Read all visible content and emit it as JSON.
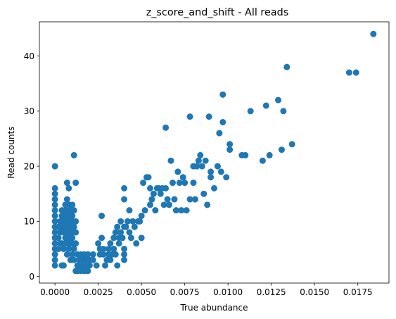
{
  "chart_data": {
    "type": "scatter",
    "title": "z_score_and_shift - All reads",
    "xlabel": "True abundance",
    "ylabel": "Read counts",
    "xlim": [
      -0.0009,
      0.0193
    ],
    "ylim": [
      -1.2,
      46.2
    ],
    "xticks": [
      0.0,
      0.0025,
      0.005,
      0.0075,
      0.01,
      0.0125,
      0.015,
      0.0175
    ],
    "xtick_labels": [
      "0.0000",
      "0.0025",
      "0.0050",
      "0.0075",
      "0.0100",
      "0.0125",
      "0.0150",
      "0.0175"
    ],
    "yticks": [
      0,
      10,
      20,
      30,
      40
    ],
    "ytick_labels": [
      "0",
      "10",
      "20",
      "30",
      "40"
    ],
    "grid": false,
    "marker_color": "#1f77b4",
    "series": [
      {
        "points": [
          [
            0.0,
            20
          ],
          [
            0.0,
            16
          ],
          [
            0.0,
            15
          ],
          [
            0.0,
            14
          ],
          [
            0.0,
            13
          ],
          [
            0.0,
            12
          ],
          [
            0.0,
            11
          ],
          [
            0.0,
            10
          ],
          [
            0.0,
            9
          ],
          [
            0.0,
            8
          ],
          [
            0.0,
            7
          ],
          [
            0.0,
            6
          ],
          [
            0.0,
            5
          ],
          [
            0.0,
            4
          ],
          [
            0.0,
            3
          ],
          [
            0.0,
            2
          ],
          [
            0.0002,
            9
          ],
          [
            0.0002,
            7
          ],
          [
            0.0002,
            5
          ],
          [
            0.0003,
            10
          ],
          [
            0.0003,
            8
          ],
          [
            0.0003,
            6
          ],
          [
            0.0004,
            12
          ],
          [
            0.0004,
            11
          ],
          [
            0.0004,
            9
          ],
          [
            0.0004,
            6
          ],
          [
            0.0004,
            2
          ],
          [
            0.0005,
            11
          ],
          [
            0.0005,
            10
          ],
          [
            0.0005,
            8
          ],
          [
            0.0005,
            5
          ],
          [
            0.0005,
            2
          ],
          [
            0.0006,
            13
          ],
          [
            0.0006,
            12
          ],
          [
            0.0006,
            10
          ],
          [
            0.0006,
            9
          ],
          [
            0.0006,
            7
          ],
          [
            0.0006,
            6
          ],
          [
            0.0007,
            17
          ],
          [
            0.0007,
            14
          ],
          [
            0.0007,
            11
          ],
          [
            0.0007,
            9
          ],
          [
            0.0007,
            8
          ],
          [
            0.0007,
            6
          ],
          [
            0.0007,
            4
          ],
          [
            0.0008,
            16
          ],
          [
            0.0008,
            13
          ],
          [
            0.0008,
            12
          ],
          [
            0.0008,
            10
          ],
          [
            0.0008,
            7
          ],
          [
            0.0008,
            5
          ],
          [
            0.0009,
            12
          ],
          [
            0.0009,
            11
          ],
          [
            0.0009,
            9
          ],
          [
            0.0009,
            8
          ],
          [
            0.0009,
            6
          ],
          [
            0.0009,
            3
          ],
          [
            0.001,
            13
          ],
          [
            0.001,
            11
          ],
          [
            0.001,
            10
          ],
          [
            0.001,
            8
          ],
          [
            0.001,
            7
          ],
          [
            0.001,
            6
          ],
          [
            0.001,
            4
          ],
          [
            0.0011,
            22
          ],
          [
            0.0011,
            12
          ],
          [
            0.0011,
            9
          ],
          [
            0.0011,
            5
          ],
          [
            0.0011,
            3
          ],
          [
            0.0012,
            17
          ],
          [
            0.0012,
            10
          ],
          [
            0.0012,
            8
          ],
          [
            0.0012,
            6
          ],
          [
            0.0012,
            1
          ],
          [
            0.0013,
            4
          ],
          [
            0.0013,
            2
          ],
          [
            0.0013,
            1
          ],
          [
            0.0014,
            3
          ],
          [
            0.0014,
            2
          ],
          [
            0.0015,
            4
          ],
          [
            0.0015,
            1
          ],
          [
            0.0016,
            3
          ],
          [
            0.0016,
            2
          ],
          [
            0.0017,
            4
          ],
          [
            0.0017,
            1
          ],
          [
            0.0018,
            3
          ],
          [
            0.0018,
            2
          ],
          [
            0.0019,
            4
          ],
          [
            0.0019,
            1
          ],
          [
            0.002,
            3
          ],
          [
            0.002,
            2
          ],
          [
            0.0022,
            4
          ],
          [
            0.0022,
            3
          ],
          [
            0.0024,
            2
          ],
          [
            0.0025,
            6
          ],
          [
            0.0026,
            5
          ],
          [
            0.0026,
            4
          ],
          [
            0.0027,
            7
          ],
          [
            0.0027,
            11
          ],
          [
            0.0028,
            5
          ],
          [
            0.0028,
            4
          ],
          [
            0.0029,
            2
          ],
          [
            0.003,
            3
          ],
          [
            0.0031,
            5
          ],
          [
            0.0031,
            4
          ],
          [
            0.0032,
            6
          ],
          [
            0.0032,
            3
          ],
          [
            0.0033,
            4
          ],
          [
            0.0034,
            7
          ],
          [
            0.0034,
            5
          ],
          [
            0.0035,
            8
          ],
          [
            0.0035,
            4
          ],
          [
            0.0036,
            9
          ],
          [
            0.0036,
            2
          ],
          [
            0.0037,
            7
          ],
          [
            0.0037,
            6
          ],
          [
            0.0038,
            10
          ],
          [
            0.0038,
            8
          ],
          [
            0.0039,
            7
          ],
          [
            0.004,
            16
          ],
          [
            0.004,
            14
          ],
          [
            0.004,
            9
          ],
          [
            0.004,
            5
          ],
          [
            0.004,
            4
          ],
          [
            0.004,
            3
          ],
          [
            0.0041,
            9
          ],
          [
            0.0042,
            10
          ],
          [
            0.0043,
            12
          ],
          [
            0.0043,
            8
          ],
          [
            0.0044,
            7
          ],
          [
            0.0045,
            10
          ],
          [
            0.0046,
            9
          ],
          [
            0.0047,
            6
          ],
          [
            0.0048,
            10
          ],
          [
            0.0049,
            10
          ],
          [
            0.005,
            11
          ],
          [
            0.005,
            7
          ],
          [
            0.0051,
            17
          ],
          [
            0.0052,
            12
          ],
          [
            0.0053,
            18
          ],
          [
            0.0054,
            18
          ],
          [
            0.0055,
            16
          ],
          [
            0.0055,
            13
          ],
          [
            0.0056,
            14
          ],
          [
            0.0057,
            15
          ],
          [
            0.0058,
            12
          ],
          [
            0.0059,
            16
          ],
          [
            0.006,
            16
          ],
          [
            0.0061,
            15
          ],
          [
            0.0062,
            16
          ],
          [
            0.0063,
            13
          ],
          [
            0.0064,
            27
          ],
          [
            0.0064,
            16
          ],
          [
            0.0065,
            14
          ],
          [
            0.0066,
            13
          ],
          [
            0.0067,
            21
          ],
          [
            0.0068,
            17
          ],
          [
            0.0069,
            14
          ],
          [
            0.007,
            12
          ],
          [
            0.0071,
            19
          ],
          [
            0.0072,
            17
          ],
          [
            0.0073,
            12
          ],
          [
            0.0074,
            18
          ],
          [
            0.0075,
            17
          ],
          [
            0.0076,
            12
          ],
          [
            0.0078,
            29
          ],
          [
            0.0078,
            14
          ],
          [
            0.008,
            17
          ],
          [
            0.008,
            20
          ],
          [
            0.0081,
            14
          ],
          [
            0.0082,
            20
          ],
          [
            0.0083,
            21
          ],
          [
            0.0084,
            22
          ],
          [
            0.0085,
            20
          ],
          [
            0.0086,
            15
          ],
          [
            0.0087,
            21
          ],
          [
            0.0088,
            13
          ],
          [
            0.0089,
            29
          ],
          [
            0.009,
            18
          ],
          [
            0.009,
            19
          ],
          [
            0.0092,
            16
          ],
          [
            0.0094,
            20
          ],
          [
            0.0095,
            26
          ],
          [
            0.0096,
            19
          ],
          [
            0.0097,
            33
          ],
          [
            0.0097,
            28
          ],
          [
            0.0099,
            18
          ],
          [
            0.0101,
            23
          ],
          [
            0.0101,
            24
          ],
          [
            0.0108,
            22
          ],
          [
            0.011,
            22
          ],
          [
            0.0113,
            30
          ],
          [
            0.012,
            21
          ],
          [
            0.0122,
            31
          ],
          [
            0.0124,
            22
          ],
          [
            0.0129,
            32
          ],
          [
            0.0131,
            23
          ],
          [
            0.0132,
            30
          ],
          [
            0.0134,
            38
          ],
          [
            0.0137,
            24
          ],
          [
            0.017,
            37
          ],
          [
            0.0174,
            37
          ],
          [
            0.0184,
            44
          ]
        ]
      }
    ]
  }
}
